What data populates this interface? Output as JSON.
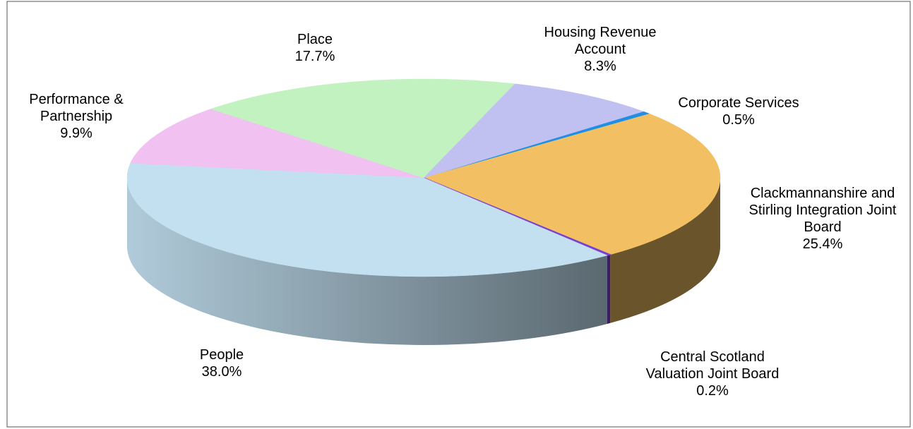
{
  "chart_data": {
    "type": "pie3d",
    "categories": [
      "Corporate Services",
      "Clackmannanshire and Stirling Integration Joint Board",
      "Central Scotland Valuation Joint Board",
      "People",
      "Performance & Partnership",
      "Place",
      "Housing Revenue Account"
    ],
    "values": [
      0.5,
      25.4,
      0.2,
      38,
      9.9,
      17.7,
      8.3
    ],
    "value_labels": [
      "0.5%",
      "25.4%",
      "0.2%",
      "38.0%",
      "9.9%",
      "17.7%",
      "8.3%"
    ],
    "colors": [
      "#1e8fe6",
      "#f2c063",
      "#7a3fd2",
      "#c3e0f1",
      "#f1c1f1",
      "#c2f2c0",
      "#c1c1f1"
    ]
  }
}
